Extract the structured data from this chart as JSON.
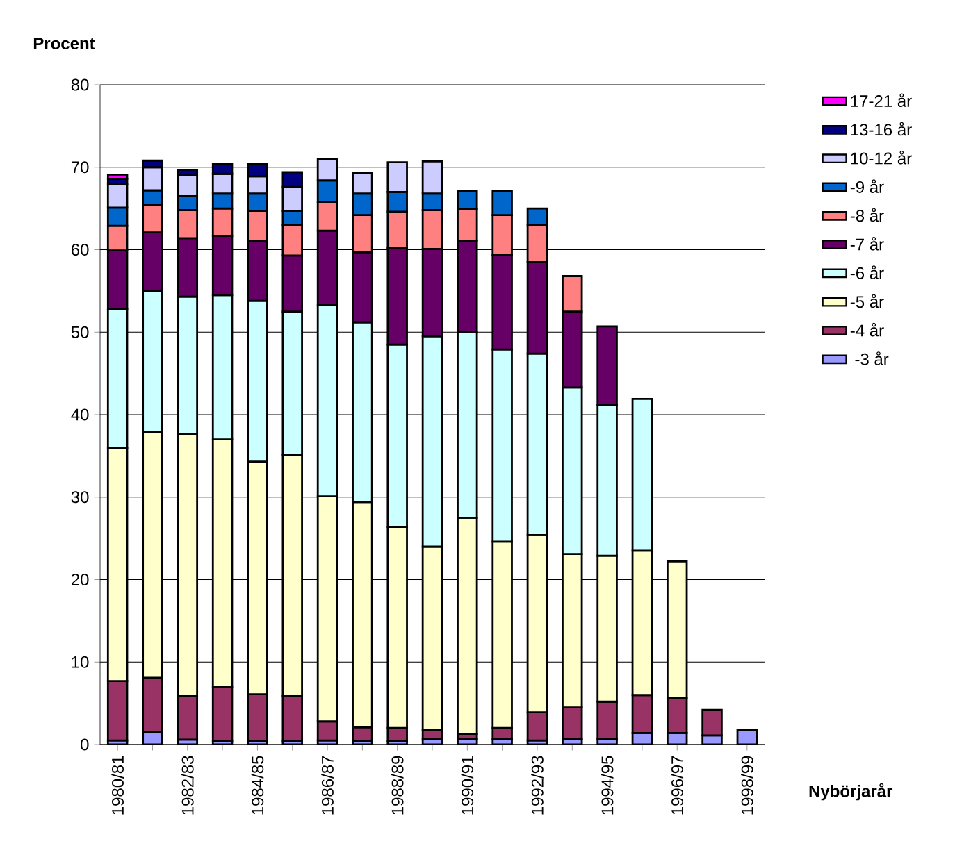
{
  "chart_data": {
    "type": "bar",
    "stacked": true,
    "xlabel": "Nybörjarår",
    "ylabel": "Procent",
    "categories": [
      "1980/81",
      null,
      "1982/83",
      null,
      "1984/85",
      null,
      "1986/87",
      null,
      "1988/89",
      null,
      "1990/91",
      null,
      "1992/93",
      null,
      "1994/95",
      null,
      "1996/97",
      null,
      "1998/99"
    ],
    "ylim": [
      0,
      80
    ],
    "yticks": [
      0,
      10,
      20,
      30,
      40,
      50,
      60,
      70,
      80
    ],
    "grid": "y",
    "legend": "right",
    "series": [
      {
        "name": " -3 år",
        "color": "#9999ff",
        "values": [
          0.5,
          1.5,
          0.6,
          0.4,
          0.4,
          0.4,
          0.5,
          0.4,
          0.4,
          0.7,
          0.7,
          0.7,
          0.5,
          0.7,
          0.7,
          1.4,
          1.4,
          1.1,
          1.8
        ]
      },
      {
        "name": "-4 år",
        "color": "#993366",
        "values": [
          7.2,
          6.6,
          5.3,
          6.6,
          5.7,
          5.5,
          2.3,
          1.7,
          1.6,
          1.1,
          0.6,
          1.3,
          3.4,
          3.8,
          4.5,
          4.6,
          4.2,
          3.1,
          null
        ]
      },
      {
        "name": "-5 år",
        "color": "#ffffcc",
        "values": [
          28.3,
          29.8,
          31.7,
          30.0,
          28.2,
          29.2,
          27.3,
          27.3,
          24.4,
          22.2,
          26.2,
          22.6,
          21.5,
          18.6,
          17.7,
          17.5,
          16.6,
          null,
          null
        ]
      },
      {
        "name": "-6 år",
        "color": "#ccffff",
        "values": [
          16.8,
          17.1,
          16.7,
          17.5,
          19.5,
          17.4,
          23.2,
          21.8,
          22.1,
          25.5,
          22.5,
          23.3,
          22.0,
          20.2,
          18.3,
          18.4,
          null,
          null,
          null
        ]
      },
      {
        "name": "-7 år",
        "color": "#660066",
        "values": [
          7.1,
          7.1,
          7.1,
          7.2,
          7.3,
          6.8,
          9.0,
          8.5,
          11.7,
          10.6,
          11.1,
          11.5,
          11.1,
          9.2,
          9.5,
          null,
          null,
          null,
          null
        ]
      },
      {
        "name": "-8 år",
        "color": "#ff8080",
        "values": [
          3.0,
          3.3,
          3.4,
          3.3,
          3.6,
          3.7,
          3.5,
          4.5,
          4.4,
          4.7,
          3.8,
          4.8,
          4.5,
          4.3,
          null,
          null,
          null,
          null,
          null
        ]
      },
      {
        "name": "-9 år",
        "color": "#0066cc",
        "values": [
          2.2,
          1.8,
          1.7,
          1.8,
          2.1,
          1.7,
          2.6,
          2.6,
          2.4,
          2.0,
          2.2,
          2.9,
          2.0,
          null,
          null,
          null,
          null,
          null,
          null
        ]
      },
      {
        "name": "10-12 år",
        "color": "#ccccff",
        "values": [
          2.8,
          2.8,
          2.5,
          2.4,
          2.1,
          2.9,
          2.6,
          2.5,
          3.6,
          3.9,
          null,
          null,
          null,
          null,
          null,
          null,
          null,
          null,
          null
        ]
      },
      {
        "name": "13-16 år",
        "color": "#000080",
        "values": [
          0.7,
          0.8,
          0.7,
          1.2,
          1.5,
          1.8,
          null,
          null,
          null,
          null,
          null,
          null,
          null,
          null,
          null,
          null,
          null,
          null,
          null
        ]
      },
      {
        "name": "17-21 år",
        "color": "#ff00ff",
        "values": [
          0.5,
          null,
          null,
          null,
          null,
          null,
          null,
          null,
          null,
          null,
          null,
          null,
          null,
          null,
          null,
          null,
          null,
          null,
          null
        ]
      }
    ]
  }
}
